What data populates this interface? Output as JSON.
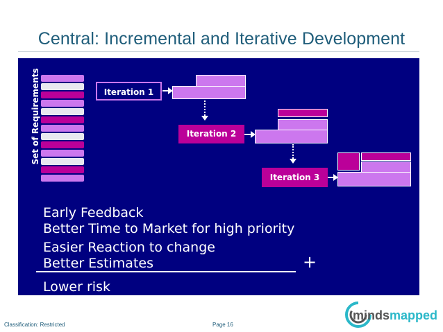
{
  "slide": {
    "title": "Central: Incremental and Iterative Development",
    "requirements_label": "Set of Requirements",
    "iterations": [
      {
        "label": "Iteration 1",
        "style": "outlined",
        "color": "#cc77ee"
      },
      {
        "label": "Iteration 2",
        "style": "filled",
        "color": "#bb0099"
      },
      {
        "label": "Iteration 3",
        "style": "filled",
        "color": "#bb0099"
      }
    ],
    "requirement_bar_colors": [
      "#cc77ee",
      "#e8e8f0",
      "#bb0099",
      "#cc77ee",
      "#e8e8f0",
      "#bb0099",
      "#cc77ee",
      "#e8e8f0",
      "#bb0099",
      "#cc77ee",
      "#e8e8f0",
      "#bb0099",
      "#cc77ee"
    ],
    "benefits": [
      "Early Feedback",
      "Better Time to Market for high priority",
      "Easier Reaction to change",
      "Better Estimates",
      "Lower risk"
    ],
    "plus_sign": "+"
  },
  "footer": {
    "classification": "Classification: Restricted",
    "page": "Page 16"
  },
  "logo": {
    "text_part1": "minds",
    "text_part2": "mapped"
  },
  "colors": {
    "title": "#1f5d7a",
    "panel": "#000080",
    "light_purple": "#cc77ee",
    "magenta": "#bb0099",
    "logo_teal": "#2bb8c9"
  }
}
